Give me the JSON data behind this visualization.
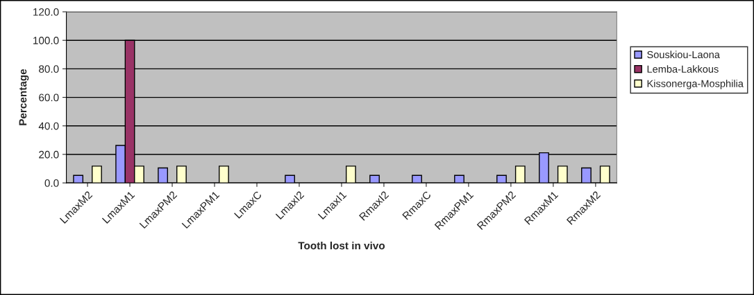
{
  "chart_data": {
    "type": "bar",
    "xlabel": "Tooth lost in vivo",
    "ylabel": "Percentage",
    "categories": [
      "LmaxM2",
      "LmaxM1",
      "LmaxPM2",
      "LmaxPM1",
      "LmaxC",
      "LmaxI2",
      "LmaxI1",
      "RmaxI2",
      "RmaxC",
      "RmaxPM1",
      "RmaxPM2",
      "RmaxM1",
      "RmaxM2"
    ],
    "series": [
      {
        "name": "Souskiou-Laona",
        "color": "#9999ff",
        "values": [
          5.3,
          26.3,
          10.5,
          null,
          null,
          5.3,
          null,
          5.3,
          5.3,
          5.3,
          5.3,
          21.1,
          10.5
        ]
      },
      {
        "name": "Lemba-Lakkous",
        "color": "#993366",
        "values": [
          null,
          100,
          null,
          null,
          null,
          null,
          null,
          null,
          null,
          null,
          null,
          null,
          null
        ]
      },
      {
        "name": "Kissonerga-Mosphilia",
        "color": "#ffffcc",
        "values": [
          11.8,
          11.8,
          11.8,
          11.8,
          null,
          null,
          11.8,
          null,
          null,
          null,
          11.8,
          11.8,
          11.8
        ]
      }
    ],
    "ylim": [
      0,
      120
    ],
    "yticks": [
      {
        "value": 0,
        "label": "0.0"
      },
      {
        "value": 20,
        "label": "20.0"
      },
      {
        "value": 40,
        "label": "40.0"
      },
      {
        "value": 60,
        "label": "60.0"
      },
      {
        "value": 80,
        "label": "80.0"
      },
      {
        "value": 100,
        "label": "100.0"
      },
      {
        "value": 120,
        "label": "120.0"
      }
    ],
    "grid": "y",
    "legend": "right"
  }
}
